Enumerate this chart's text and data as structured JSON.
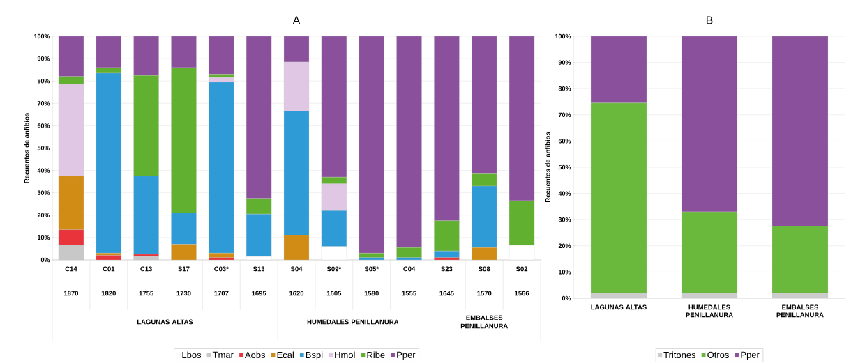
{
  "chart_data": [
    {
      "type": "bar",
      "title": "A",
      "ylabel": "Recuentos de anfibios",
      "stacked": true,
      "grid": "y",
      "legend": "bottom",
      "categories": [
        "C14",
        "C01",
        "C13",
        "S17",
        "C03*",
        "S13",
        "S04",
        "S09*",
        "S05*",
        "C04",
        "S23",
        "S08",
        "S02"
      ],
      "ylim": [
        0,
        100
      ],
      "yticks": [
        {
          "value": 0,
          "label": "0%"
        },
        {
          "value": 10,
          "label": "10%"
        },
        {
          "value": 20,
          "label": "20%"
        },
        {
          "value": 30,
          "label": "30%"
        },
        {
          "value": 40,
          "label": "40%"
        },
        {
          "value": 50,
          "label": "50%"
        },
        {
          "value": 60,
          "label": "60%"
        },
        {
          "value": 70,
          "label": "70%"
        },
        {
          "value": 80,
          "label": "80%"
        },
        {
          "value": 90,
          "label": "90%"
        },
        {
          "value": 100,
          "label": "100%"
        }
      ],
      "series": [
        {
          "name": "Lbos",
          "color": "#ffffff",
          "values": [
            0,
            0,
            0,
            0,
            0,
            1.5,
            0,
            6,
            0,
            0,
            0,
            0,
            6.5
          ]
        },
        {
          "name": "Tmar",
          "color": "#c8c8c8",
          "values": [
            6.5,
            0,
            1.5,
            0,
            0,
            0,
            0,
            0,
            0,
            0,
            0,
            0,
            0
          ]
        },
        {
          "name": "Aobs",
          "color": "#e8343a",
          "values": [
            7,
            2,
            1,
            0,
            1,
            0,
            0,
            0,
            0,
            0,
            1,
            0,
            0
          ]
        },
        {
          "name": "Ecal",
          "color": "#d08c14",
          "values": [
            24,
            1,
            0,
            7,
            2,
            0,
            11,
            0,
            0,
            0,
            0,
            5.5,
            0
          ]
        },
        {
          "name": "Bspi",
          "color": "#2e9bd6",
          "values": [
            0,
            80.5,
            35,
            14,
            76.5,
            19,
            55.5,
            16,
            1,
            1,
            3,
            27.5,
            0
          ]
        },
        {
          "name": "Hmol",
          "color": "#e0c8e4",
          "values": [
            41,
            0,
            0,
            0,
            2,
            0,
            22,
            12,
            0,
            0,
            0,
            0,
            0
          ]
        },
        {
          "name": "Ribe",
          "color": "#62b030",
          "values": [
            3.5,
            2.5,
            45,
            65,
            1.5,
            7,
            0,
            3,
            2,
            4.5,
            13.5,
            5.5,
            20
          ]
        },
        {
          "name": "Pper",
          "color": "#8a509c",
          "values": [
            18,
            14,
            17.5,
            14,
            17,
            72.5,
            11.5,
            63,
            97,
            94.5,
            82.5,
            61.5,
            73.5
          ]
        }
      ],
      "annotations": [
        "1870",
        "1820",
        "1755",
        "1730",
        "1707",
        "1695",
        "1620",
        "1605",
        "1580",
        "1555",
        "1645",
        "1570",
        "1566",
        "LAGUNAS ALTAS",
        "HUMEDALES PENILLANURA",
        "EMBALSES PENILLANURA"
      ]
    },
    {
      "type": "bar",
      "title": "B",
      "ylabel": "Recuentos de anfibios",
      "stacked": true,
      "grid": "y",
      "legend": "bottom",
      "categories": [
        "LAGUNAS ALTAS",
        "HUMEDALES PENILLANURA",
        "EMBALSES PENILLANURA"
      ],
      "ylim": [
        0,
        100
      ],
      "yticks": [
        {
          "value": 0,
          "label": "0%"
        },
        {
          "value": 10,
          "label": "10%"
        },
        {
          "value": 20,
          "label": "20%"
        },
        {
          "value": 30,
          "label": "30%"
        },
        {
          "value": 40,
          "label": "40%"
        },
        {
          "value": 50,
          "label": "50%"
        },
        {
          "value": 60,
          "label": "60%"
        },
        {
          "value": 70,
          "label": "70%"
        },
        {
          "value": 80,
          "label": "80%"
        },
        {
          "value": 90,
          "label": "90%"
        },
        {
          "value": 100,
          "label": "100%"
        }
      ],
      "series": [
        {
          "name": "Tritones",
          "color": "#cccccc",
          "values": [
            2,
            2,
            2
          ]
        },
        {
          "name": "Otros",
          "color": "#6ab83c",
          "values": [
            72.5,
            31,
            25.5
          ]
        },
        {
          "name": "Pper",
          "color": "#8a509c",
          "values": [
            25.5,
            67,
            72.5
          ]
        }
      ]
    }
  ]
}
